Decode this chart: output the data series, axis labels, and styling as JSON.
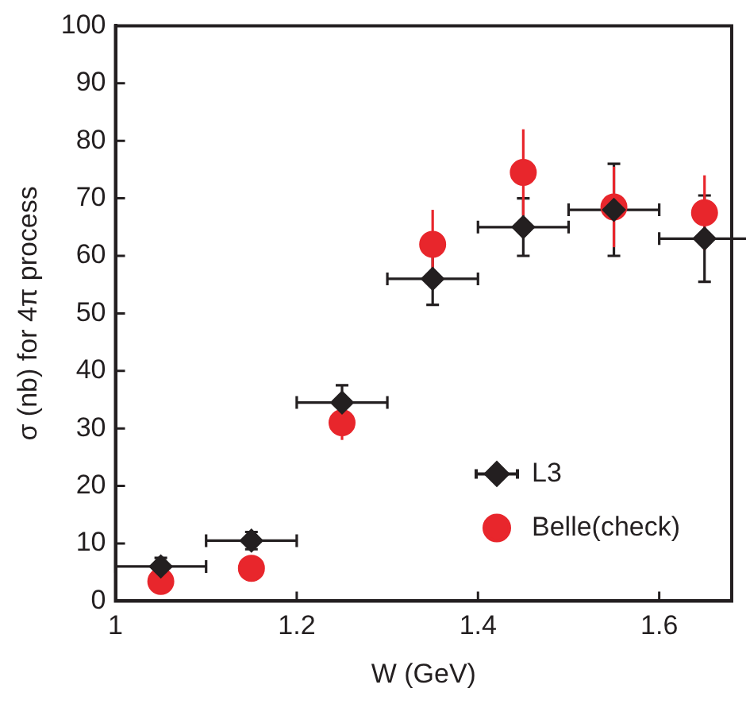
{
  "chart_data": {
    "type": "scatter",
    "xlabel": "W (GeV)",
    "ylabel": "σ (nb) for 4π process",
    "x": [
      1.05,
      1.15,
      1.25,
      1.35,
      1.45,
      1.55,
      1.65
    ],
    "xlim": [
      1,
      1.68
    ],
    "xticks": [
      1,
      1.2,
      1.4,
      1.6
    ],
    "ylim": [
      0,
      100
    ],
    "yticks": [
      0,
      10,
      20,
      30,
      40,
      50,
      60,
      70,
      80,
      90,
      100
    ],
    "grid": false,
    "legend": "bottom right",
    "series": [
      {
        "name": "L3",
        "color": "#231f20",
        "marker": "diamond",
        "values": [
          6,
          10.5,
          34.5,
          56,
          65,
          68,
          63
        ],
        "errors": [
          1.5,
          1.5,
          3,
          4.5,
          5,
          8,
          7.5
        ],
        "xerrors": [
          0.05,
          0.05,
          0.05,
          0.05,
          0.05,
          0.05,
          0.05
        ]
      },
      {
        "name": "Belle(check)",
        "color": "#e8262c",
        "marker": "circle",
        "values": [
          3.4,
          5.7,
          31,
          62,
          74.5,
          68.5,
          67.5
        ],
        "errors": [
          null,
          null,
          3,
          6,
          7.5,
          7,
          6.5
        ]
      }
    ]
  }
}
